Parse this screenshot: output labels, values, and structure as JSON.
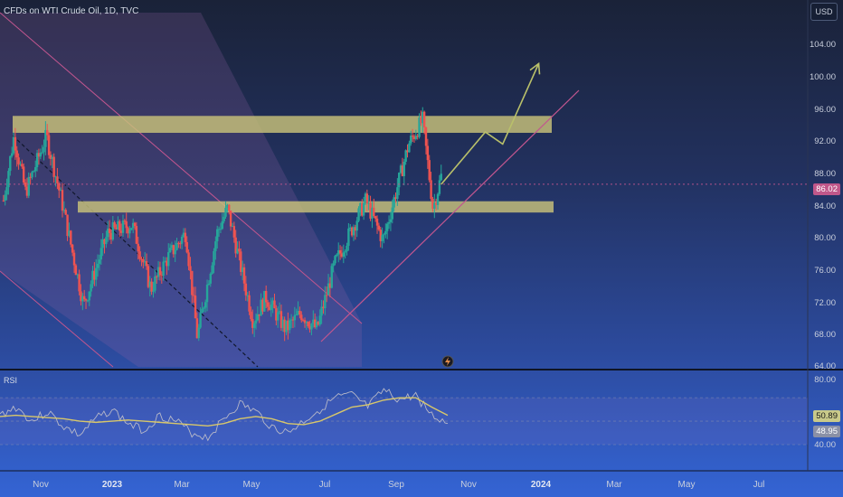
{
  "header": {
    "symbol_title": "CFDs on WTI Crude Oil, 1D, TVC",
    "currency_button": "USD"
  },
  "rsi_label": "RSI",
  "price_badge": "86.02",
  "rsi_badge_1": "50.89",
  "rsi_badge_2": "48.95",
  "colors": {
    "up": "#26a69a",
    "down": "#ef5350",
    "zone": "#c9c27a",
    "trendline": "#c2568f",
    "rsi_line": "#b7b8c8",
    "rsi_ma": "#d8c76a",
    "arrow": "#b9c06a"
  },
  "chart_data": [
    {
      "type": "candlestick",
      "title": "CFDs on WTI Crude Oil, 1D, TVC",
      "ylim": [
        64,
        108
      ],
      "yticks": [
        "64.00",
        "68.00",
        "72.00",
        "76.00",
        "80.00",
        "84.00",
        "88.00",
        "92.00",
        "96.00",
        "100.00",
        "104.00"
      ],
      "xticks": [
        {
          "label": "Nov",
          "bold": false
        },
        {
          "label": "2023",
          "bold": true
        },
        {
          "label": "Mar",
          "bold": false
        },
        {
          "label": "May",
          "bold": false
        },
        {
          "label": "Jul",
          "bold": false
        },
        {
          "label": "Sep",
          "bold": false
        },
        {
          "label": "Nov",
          "bold": false
        },
        {
          "label": "2024",
          "bold": true
        },
        {
          "label": "Mar",
          "bold": false
        },
        {
          "label": "May",
          "bold": false
        },
        {
          "label": "Jul",
          "bold": false
        }
      ],
      "approx_close_path": [
        [
          "2022-10-01",
          84
        ],
        [
          "2022-10-10",
          92
        ],
        [
          "2022-10-20",
          85
        ],
        [
          "2022-11-07",
          92
        ],
        [
          "2022-11-20",
          84
        ],
        [
          "2022-12-09",
          71
        ],
        [
          "2022-12-30",
          80
        ],
        [
          "2023-01-20",
          81
        ],
        [
          "2023-02-05",
          73
        ],
        [
          "2023-02-20",
          77
        ],
        [
          "2023-03-07",
          80
        ],
        [
          "2023-03-17",
          67
        ],
        [
          "2023-04-03",
          80
        ],
        [
          "2023-04-12",
          83
        ],
        [
          "2023-05-04",
          69
        ],
        [
          "2023-05-15",
          72
        ],
        [
          "2023-06-01",
          68
        ],
        [
          "2023-06-14",
          70
        ],
        [
          "2023-06-28",
          68
        ],
        [
          "2023-07-13",
          76
        ],
        [
          "2023-08-09",
          84
        ],
        [
          "2023-08-24",
          79
        ],
        [
          "2023-09-15",
          91
        ],
        [
          "2023-09-27",
          94
        ],
        [
          "2023-10-06",
          83
        ],
        [
          "2023-10-13",
          87
        ]
      ],
      "last_price": 86.02,
      "resistance_zone": [
        92.4,
        94.5
      ],
      "support_zone": [
        82.5,
        83.9
      ],
      "projected_path": [
        [
          "2023-10-13",
          86
        ],
        [
          "2023-11-20",
          92.5
        ],
        [
          "2023-12-05",
          91
        ],
        [
          "2024-01-05",
          101
        ]
      ]
    },
    {
      "type": "line",
      "title": "RSI",
      "ylim": [
        30,
        80
      ],
      "yticks": [
        "40.00",
        "80.00"
      ],
      "series": [
        {
          "values": [
            55,
            62,
            50,
            58,
            45,
            38,
            52,
            60,
            48,
            42,
            55,
            50,
            40,
            36,
            52,
            65,
            58,
            45,
            40,
            50,
            60,
            70,
            72,
            62,
            76,
            68,
            72,
            55,
            48
          ]
        },
        {
          "values": [
            54,
            55,
            54,
            53,
            52,
            50,
            49,
            50,
            51,
            50,
            49,
            48,
            47,
            46,
            48,
            52,
            54,
            52,
            48,
            47,
            50,
            56,
            62,
            64,
            68,
            70,
            70,
            62,
            55
          ]
        }
      ]
    }
  ]
}
